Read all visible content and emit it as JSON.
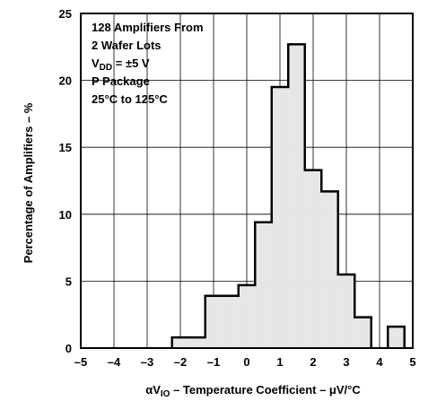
{
  "chart_data": {
    "type": "bar",
    "title": "",
    "xlabel_prefix": "αV",
    "xlabel_sub": "IO",
    "xlabel_rest": " – Temperature Coefficient – μV/°C",
    "ylabel": "Percentage of Amplifiers – %",
    "xlim": [
      -5,
      5
    ],
    "ylim": [
      0,
      25
    ],
    "x_ticks": [
      "–5",
      "–4",
      "–3",
      "–2",
      "–1",
      "0",
      "1",
      "2",
      "3",
      "4",
      "5"
    ],
    "x_tick_values": [
      -5,
      -4,
      -3,
      -2,
      -1,
      0,
      1,
      2,
      3,
      4,
      5
    ],
    "y_ticks": [
      "0",
      "5",
      "10",
      "15",
      "20",
      "25"
    ],
    "y_tick_values": [
      0,
      5,
      10,
      15,
      20,
      25
    ],
    "grid": true,
    "bin_edges": [
      -2.25,
      -1.75,
      -1.25,
      -0.75,
      -0.25,
      0.25,
      0.75,
      1.25,
      1.75,
      2.25,
      2.75,
      3.25,
      3.75,
      4.25,
      4.75
    ],
    "values": [
      0.8,
      0.8,
      3.9,
      3.9,
      4.7,
      9.4,
      19.5,
      22.7,
      13.3,
      11.7,
      5.5,
      2.3,
      0,
      1.6
    ],
    "fill_color": "#e6e6e6",
    "edge_color": "#000000",
    "annotation": {
      "line1": "128 Amplifiers From",
      "line2": "2 Wafer Lots",
      "line3_prefix": "V",
      "line3_sub": "DD",
      "line3_rest": " = ±5 V",
      "line4": "P Package",
      "line5": "25°C to 125°C"
    }
  }
}
